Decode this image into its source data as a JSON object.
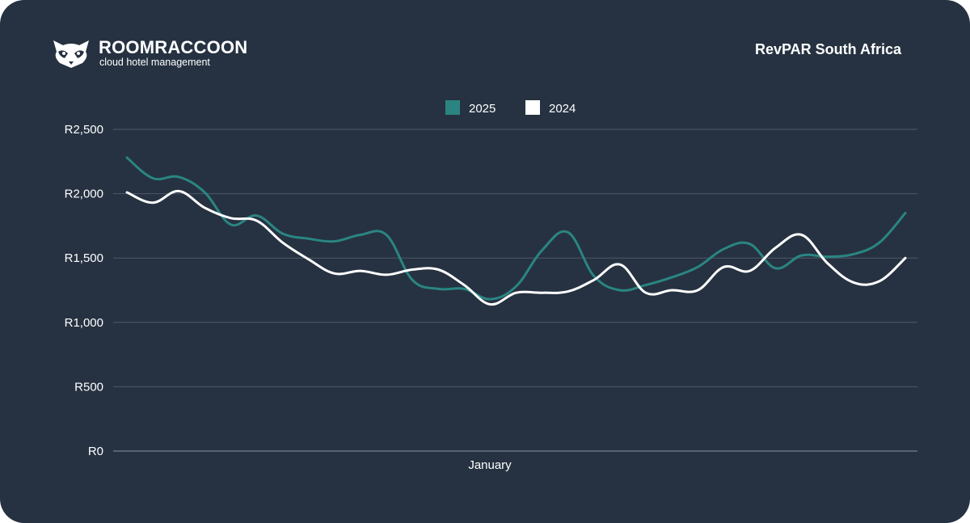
{
  "brand": {
    "name": "ROOMRACCOON",
    "tagline": "cloud hotel management"
  },
  "colors": {
    "background": "#263241",
    "series_2025": "#2a8582",
    "series_2024": "#ffffff",
    "grid": "#4e5a68"
  },
  "chart_data": {
    "type": "line",
    "title": "RevPAR South Africa",
    "xlabel": "January",
    "ylabel": "",
    "ylim": [
      0,
      2500
    ],
    "y_ticks": [
      "R0",
      "R500",
      "R1,000",
      "R1,500",
      "R2,000",
      "R2,500"
    ],
    "grid": "horizontal",
    "legend_position": "top-center",
    "x": [
      1,
      2,
      3,
      4,
      5,
      6,
      7,
      8,
      9,
      10,
      11,
      12,
      13,
      14,
      15,
      16,
      17,
      18,
      19,
      20,
      21,
      22,
      23,
      24,
      25,
      26,
      27,
      28,
      29,
      30,
      31
    ],
    "series": [
      {
        "name": "2025",
        "values": [
          2280,
          2120,
          2130,
          2010,
          1760,
          1830,
          1690,
          1650,
          1630,
          1680,
          1680,
          1330,
          1260,
          1260,
          1180,
          1280,
          1560,
          1700,
          1360,
          1250,
          1290,
          1350,
          1430,
          1570,
          1610,
          1420,
          1520,
          1510,
          1530,
          1620,
          1850
        ]
      },
      {
        "name": "2024",
        "values": [
          2010,
          1930,
          2020,
          1890,
          1810,
          1790,
          1620,
          1490,
          1380,
          1400,
          1370,
          1410,
          1410,
          1290,
          1140,
          1230,
          1230,
          1240,
          1330,
          1450,
          1230,
          1250,
          1250,
          1430,
          1400,
          1580,
          1680,
          1460,
          1310,
          1320,
          1500
        ]
      }
    ]
  }
}
